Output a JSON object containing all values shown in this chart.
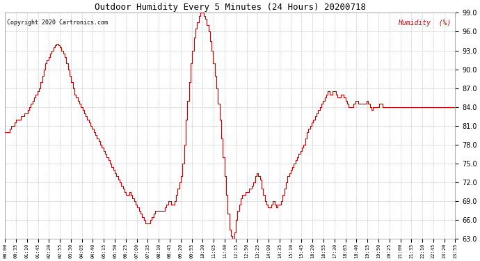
{
  "title": "Outdoor Humidity Every 5 Minutes (24 Hours) 20200718",
  "copyright_text": "Copyright 2020 Cartronics.com",
  "legend_label": "Humidity  (%)",
  "line_color": "#cc0000",
  "legend_color": "#cc0000",
  "background_color": "#ffffff",
  "grid_color": "#aaaaaa",
  "ylim": [
    63.0,
    99.0
  ],
  "yticks": [
    63.0,
    66.0,
    69.0,
    72.0,
    75.0,
    78.0,
    81.0,
    84.0,
    87.0,
    90.0,
    93.0,
    96.0,
    99.0
  ],
  "humidity_values": [
    80.0,
    80.0,
    80.0,
    80.5,
    81.0,
    81.0,
    81.5,
    82.0,
    82.0,
    82.0,
    82.5,
    82.5,
    83.0,
    83.0,
    83.5,
    84.0,
    84.5,
    85.0,
    85.5,
    86.0,
    86.5,
    87.0,
    88.0,
    89.0,
    90.0,
    91.0,
    91.5,
    92.0,
    92.5,
    93.0,
    93.5,
    93.8,
    94.0,
    93.8,
    93.5,
    93.0,
    92.5,
    92.0,
    91.0,
    90.0,
    89.0,
    88.0,
    87.0,
    86.0,
    85.5,
    85.0,
    84.5,
    84.0,
    83.5,
    83.0,
    82.5,
    82.0,
    81.5,
    81.0,
    80.5,
    80.0,
    79.5,
    79.0,
    78.5,
    78.0,
    77.5,
    77.0,
    76.5,
    76.0,
    75.5,
    75.0,
    74.5,
    74.0,
    73.5,
    73.0,
    72.5,
    72.0,
    71.5,
    71.0,
    70.5,
    70.0,
    70.0,
    70.5,
    70.0,
    69.5,
    69.0,
    68.5,
    68.0,
    67.5,
    67.0,
    66.5,
    66.0,
    65.5,
    65.5,
    65.5,
    66.0,
    66.5,
    67.0,
    67.5,
    67.5,
    67.5,
    67.5,
    67.5,
    67.5,
    68.0,
    68.5,
    69.0,
    69.0,
    68.5,
    68.5,
    69.0,
    70.0,
    71.0,
    72.0,
    73.0,
    75.0,
    78.0,
    82.0,
    85.0,
    88.0,
    91.0,
    93.0,
    95.0,
    96.5,
    97.5,
    98.5,
    99.0,
    99.0,
    98.5,
    98.0,
    97.0,
    96.0,
    94.5,
    93.0,
    91.0,
    89.0,
    87.0,
    84.5,
    82.0,
    79.0,
    76.0,
    73.0,
    70.0,
    67.0,
    64.5,
    63.5,
    63.0,
    64.0,
    66.0,
    67.5,
    68.5,
    69.5,
    70.0,
    70.0,
    70.5,
    70.5,
    71.0,
    71.0,
    71.5,
    72.0,
    73.0,
    73.5,
    73.0,
    72.5,
    71.0,
    70.0,
    69.0,
    68.5,
    68.0,
    68.0,
    68.5,
    69.0,
    68.5,
    68.0,
    68.5,
    68.5,
    69.0,
    70.0,
    71.0,
    72.0,
    73.0,
    73.5,
    74.0,
    74.5,
    75.0,
    75.5,
    76.0,
    76.5,
    77.0,
    77.5,
    78.0,
    79.0,
    80.0,
    80.5,
    81.0,
    81.5,
    82.0,
    82.5,
    83.0,
    83.5,
    84.0,
    84.5,
    85.0,
    85.5,
    86.0,
    86.5,
    86.0,
    86.0,
    86.5,
    86.5,
    86.0,
    85.5,
    85.5,
    86.0,
    86.0,
    85.5,
    85.0,
    84.5,
    84.0,
    84.0,
    84.0,
    84.5,
    85.0,
    85.0,
    84.5,
    84.5,
    84.5,
    84.5,
    84.5,
    85.0,
    84.5,
    84.0,
    83.5,
    84.0,
    84.0,
    84.0,
    84.0,
    84.5,
    84.5,
    84.0,
    84.0,
    84.0,
    84.0,
    84.0,
    84.0,
    84.0,
    84.0,
    84.0,
    84.0,
    84.0,
    84.0,
    84.0,
    84.0,
    84.0,
    84.0,
    84.0,
    84.0,
    84.0,
    84.0,
    84.0,
    84.0,
    84.0,
    84.0,
    84.0,
    84.0,
    84.0,
    84.0,
    84.0,
    84.0,
    84.0,
    84.0,
    84.0,
    84.0,
    84.0,
    84.0,
    84.0,
    84.0,
    84.0,
    84.0,
    84.0,
    84.0,
    84.0,
    84.0,
    84.0,
    83.5
  ],
  "x_tick_interval": 7,
  "x_tick_labels": [
    "00:00",
    "00:35",
    "01:10",
    "01:45",
    "02:20",
    "02:55",
    "03:30",
    "04:05",
    "04:40",
    "05:15",
    "05:50",
    "06:25",
    "07:00",
    "07:35",
    "08:10",
    "08:45",
    "09:20",
    "09:55",
    "10:30",
    "11:05",
    "11:40",
    "12:15",
    "12:50",
    "13:25",
    "14:00",
    "14:35",
    "15:10",
    "15:45",
    "16:20",
    "16:55",
    "17:30",
    "18:05",
    "18:40",
    "19:15",
    "19:50",
    "20:25",
    "21:00",
    "21:35",
    "22:10",
    "22:45",
    "23:20",
    "23:55"
  ]
}
